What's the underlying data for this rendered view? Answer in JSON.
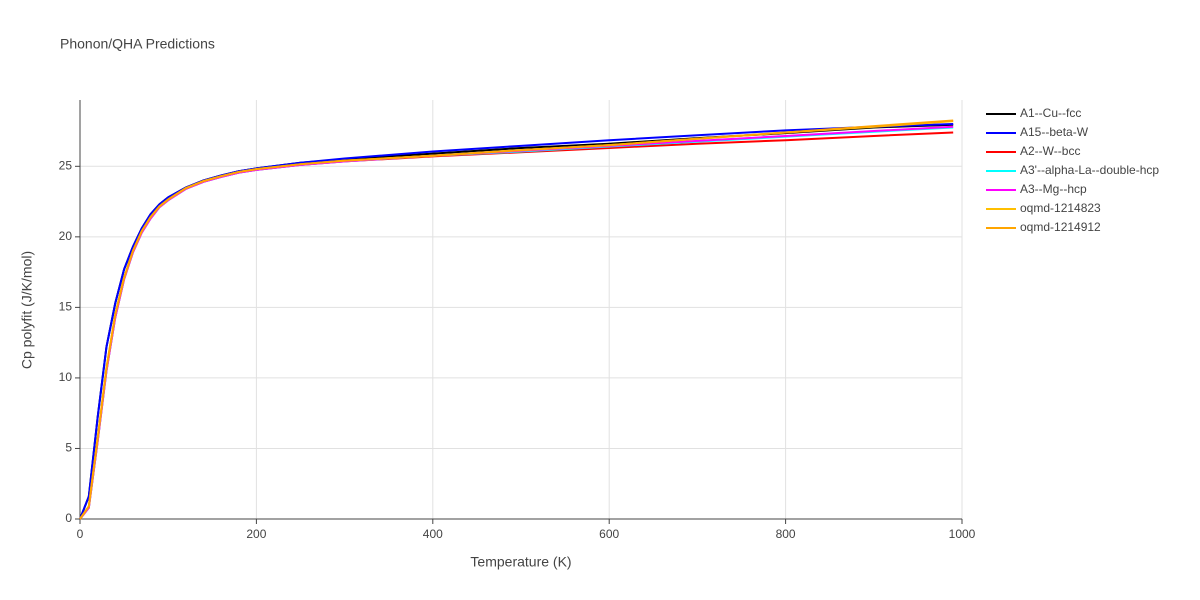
{
  "chart_data": {
    "type": "line",
    "title": "Phonon/QHA Predictions",
    "xlabel": "Temperature (K)",
    "ylabel": "Cp polyfit (J/K/mol)",
    "x": [
      0,
      10,
      20,
      30,
      40,
      50,
      60,
      70,
      80,
      90,
      100,
      120,
      140,
      160,
      180,
      200,
      250,
      300,
      400,
      500,
      600,
      700,
      800,
      900,
      990
    ],
    "xlim": [
      0,
      1000
    ],
    "xticks": [
      0,
      200,
      400,
      600,
      800,
      1000
    ],
    "ylim": [
      0,
      29.7
    ],
    "yticks": [
      0,
      5,
      10,
      15,
      20,
      25
    ],
    "grid": true,
    "series": [
      {
        "name": "A1--Cu--fcc",
        "color": "#000000",
        "values": [
          0,
          1.6,
          7.2,
          12.2,
          15.3,
          17.7,
          19.3,
          20.6,
          21.6,
          22.3,
          22.8,
          23.5,
          24.0,
          24.35,
          24.65,
          24.85,
          25.25,
          25.5,
          25.9,
          26.3,
          26.6,
          27.0,
          27.35,
          27.75,
          27.95
        ]
      },
      {
        "name": "A15--beta-W",
        "color": "#0000ff",
        "values": [
          0,
          1.6,
          7.2,
          12.2,
          15.3,
          17.7,
          19.3,
          20.6,
          21.6,
          22.3,
          22.8,
          23.5,
          24.0,
          24.35,
          24.65,
          24.85,
          25.25,
          25.55,
          26.05,
          26.45,
          26.85,
          27.2,
          27.55,
          27.8,
          28.0
        ]
      },
      {
        "name": "A2--W--bcc",
        "color": "#ff0000",
        "values": [
          0,
          0.8,
          5.5,
          10.5,
          14.3,
          17.0,
          18.9,
          20.3,
          21.3,
          22.1,
          22.6,
          23.4,
          23.9,
          24.25,
          24.55,
          24.75,
          25.1,
          25.35,
          25.7,
          26.0,
          26.3,
          26.6,
          26.85,
          27.15,
          27.4
        ]
      },
      {
        "name": "A3'--alpha-La--double-hcp",
        "color": "#00ffff",
        "values": [
          0,
          0.8,
          5.5,
          10.5,
          14.3,
          17.0,
          18.9,
          20.3,
          21.3,
          22.1,
          22.6,
          23.4,
          23.9,
          24.25,
          24.55,
          24.75,
          25.1,
          25.35,
          25.75,
          26.05,
          26.4,
          26.75,
          27.1,
          27.45,
          27.75
        ]
      },
      {
        "name": "A3--Mg--hcp",
        "color": "#ff00ff",
        "values": [
          0,
          0.8,
          5.5,
          10.5,
          14.3,
          17.0,
          18.9,
          20.3,
          21.3,
          22.1,
          22.6,
          23.4,
          23.9,
          24.25,
          24.55,
          24.75,
          25.1,
          25.35,
          25.75,
          26.1,
          26.45,
          26.8,
          27.15,
          27.5,
          27.8
        ]
      },
      {
        "name": "oqmd-1214823",
        "color": "#ffbf00",
        "values": [
          0,
          0.9,
          5.7,
          10.7,
          14.5,
          17.1,
          19.0,
          20.4,
          21.4,
          22.15,
          22.65,
          23.45,
          23.95,
          24.3,
          24.6,
          24.8,
          25.15,
          25.4,
          25.75,
          26.15,
          26.5,
          26.95,
          27.4,
          27.8,
          28.2
        ]
      },
      {
        "name": "oqmd-1214912",
        "color": "#ffa500",
        "values": [
          0,
          0.9,
          5.7,
          10.7,
          14.5,
          17.1,
          19.0,
          20.4,
          21.4,
          22.15,
          22.65,
          23.45,
          23.95,
          24.3,
          24.6,
          24.8,
          25.15,
          25.4,
          25.75,
          26.15,
          26.5,
          26.95,
          27.4,
          27.85,
          28.25
        ]
      }
    ]
  }
}
